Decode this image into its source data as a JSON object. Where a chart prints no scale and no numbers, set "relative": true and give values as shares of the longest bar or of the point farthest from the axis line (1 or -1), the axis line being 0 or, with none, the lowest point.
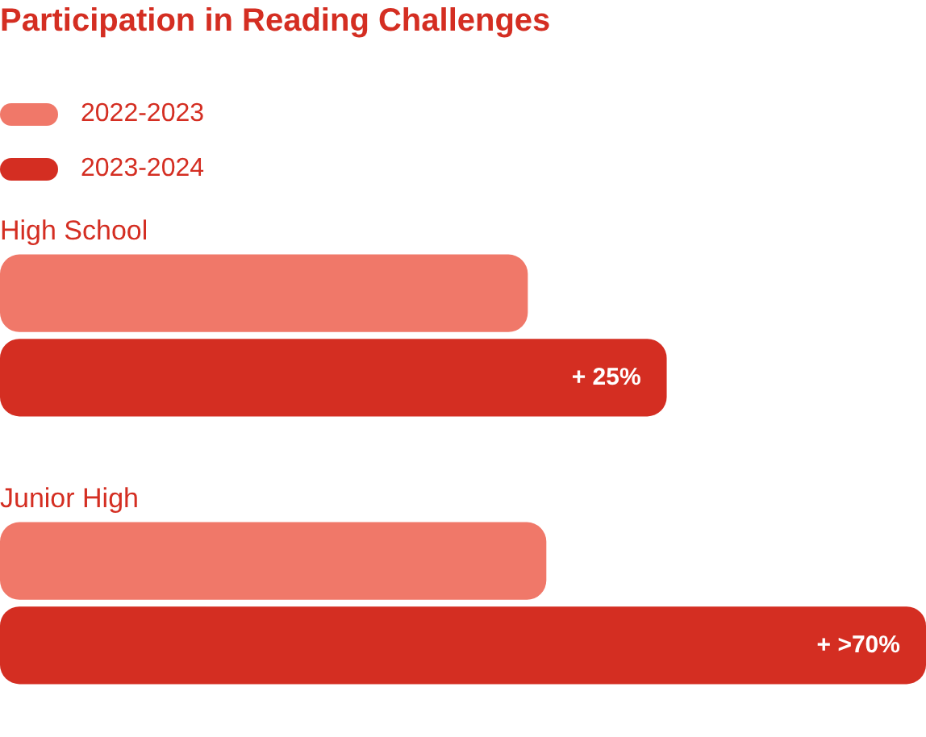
{
  "chart_data": {
    "type": "bar",
    "orientation": "horizontal",
    "relative": true,
    "title": "Participation in Reading Challenges",
    "legend": "top left",
    "categories": [
      "High School",
      "Junior High"
    ],
    "series": [
      {
        "name": "2022-2023",
        "color": "#f07869",
        "values": [
          0.57,
          0.59
        ]
      },
      {
        "name": "2023-2024",
        "color": "#d42e22",
        "values": [
          0.72,
          1
        ]
      }
    ],
    "annotations": [
      {
        "text": "+ 25%",
        "x": 0.72,
        "y": "High School"
      },
      {
        "text": "+ >70%",
        "x": 1,
        "y": "Junior High"
      }
    ]
  }
}
